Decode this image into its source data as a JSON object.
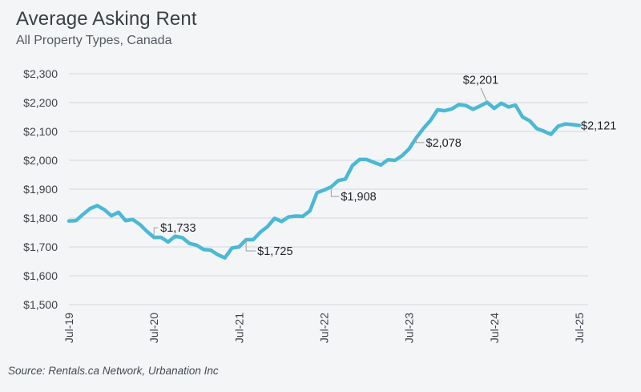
{
  "colors": {
    "line": "#4bb8d6",
    "grid": "#d4d7db",
    "annotation_leader": "#9aa0a6"
  },
  "chart_data": {
    "type": "line",
    "title": "Average Asking Rent",
    "subtitle": "All Property Types, Canada",
    "source": "Source: Rentals.ca Network, Urbanation Inc",
    "xlabel": "",
    "ylabel": "",
    "ylim": [
      1500,
      2300
    ],
    "y_ticks": [
      1500,
      1600,
      1700,
      1800,
      1900,
      2000,
      2100,
      2200,
      2300
    ],
    "y_tick_labels": [
      "$1,500",
      "$1,600",
      "$1,700",
      "$1,800",
      "$1,900",
      "$2,000",
      "$2,100",
      "$2,200",
      "$2,300"
    ],
    "x_range": [
      "Jul-19",
      "Jul-25"
    ],
    "x_tick_labels": [
      "Jul-19",
      "Jul-20",
      "Jul-21",
      "Jul-22",
      "Jul-23",
      "Jul-24",
      "Jul-25"
    ],
    "grid": "horizontal",
    "legend": "none",
    "series": [
      {
        "points": [
          [
            "Jul-19",
            1790
          ],
          [
            "Aug-19",
            1791
          ],
          [
            "Sep-19",
            1813
          ],
          [
            "Oct-19",
            1833
          ],
          [
            "Nov-19",
            1843
          ],
          [
            "Dec-19",
            1829
          ],
          [
            "Jan-20",
            1808
          ],
          [
            "Feb-20",
            1820
          ],
          [
            "Mar-20",
            1791
          ],
          [
            "Apr-20",
            1795
          ],
          [
            "May-20",
            1778
          ],
          [
            "Jun-20",
            1754
          ],
          [
            "Jul-20",
            1733
          ],
          [
            "Aug-20",
            1733
          ],
          [
            "Sep-20",
            1717
          ],
          [
            "Oct-20",
            1737
          ],
          [
            "Nov-20",
            1732
          ],
          [
            "Dec-20",
            1712
          ],
          [
            "Jan-21",
            1706
          ],
          [
            "Feb-21",
            1691
          ],
          [
            "Mar-21",
            1689
          ],
          [
            "Apr-21",
            1673
          ],
          [
            "May-21",
            1662
          ],
          [
            "Jun-21",
            1696
          ],
          [
            "Jul-21",
            1700
          ],
          [
            "Aug-21",
            1725
          ],
          [
            "Sep-21",
            1725
          ],
          [
            "Oct-21",
            1751
          ],
          [
            "Nov-21",
            1770
          ],
          [
            "Dec-21",
            1799
          ],
          [
            "Jan-22",
            1788
          ],
          [
            "Feb-22",
            1804
          ],
          [
            "Mar-22",
            1807
          ],
          [
            "Apr-22",
            1806
          ],
          [
            "May-22",
            1825
          ],
          [
            "Jun-22",
            1888
          ],
          [
            "Jul-22",
            1897
          ],
          [
            "Aug-22",
            1908
          ],
          [
            "Sep-22",
            1930
          ],
          [
            "Oct-22",
            1935
          ],
          [
            "Nov-22",
            1982
          ],
          [
            "Dec-22",
            2003
          ],
          [
            "Jan-23",
            2003
          ],
          [
            "Feb-23",
            1993
          ],
          [
            "Mar-23",
            1984
          ],
          [
            "Apr-23",
            2002
          ],
          [
            "May-23",
            2000
          ],
          [
            "Jun-23",
            2016
          ],
          [
            "Jul-23",
            2040
          ],
          [
            "Aug-23",
            2078
          ],
          [
            "Sep-23",
            2110
          ],
          [
            "Oct-23",
            2138
          ],
          [
            "Nov-23",
            2175
          ],
          [
            "Dec-23",
            2172
          ],
          [
            "Jan-24",
            2178
          ],
          [
            "Feb-24",
            2193
          ],
          [
            "Mar-24",
            2190
          ],
          [
            "Apr-24",
            2177
          ],
          [
            "May-24",
            2188
          ],
          [
            "Jun-24",
            2201
          ],
          [
            "Jul-24",
            2180
          ],
          [
            "Aug-24",
            2198
          ],
          [
            "Sep-24",
            2185
          ],
          [
            "Oct-24",
            2191
          ],
          [
            "Nov-24",
            2150
          ],
          [
            "Dec-24",
            2137
          ],
          [
            "Jan-25",
            2110
          ],
          [
            "Feb-25",
            2101
          ],
          [
            "Mar-25",
            2090
          ],
          [
            "Apr-25",
            2118
          ],
          [
            "May-25",
            2126
          ],
          [
            "Jun-25",
            2124
          ],
          [
            "Jul-25",
            2121
          ]
        ]
      }
    ],
    "annotations": [
      {
        "label": "$1,733",
        "x": "Jul-20",
        "y": 1733
      },
      {
        "label": "$1,725",
        "x": "Aug-21",
        "y": 1725
      },
      {
        "label": "$1,908",
        "x": "Aug-22",
        "y": 1908
      },
      {
        "label": "$2,078",
        "x": "Aug-23",
        "y": 2078
      },
      {
        "label": "$2,201",
        "x": "Jun-24",
        "y": 2201
      },
      {
        "label": "$2,121",
        "x": "Jul-25",
        "y": 2121
      }
    ]
  }
}
